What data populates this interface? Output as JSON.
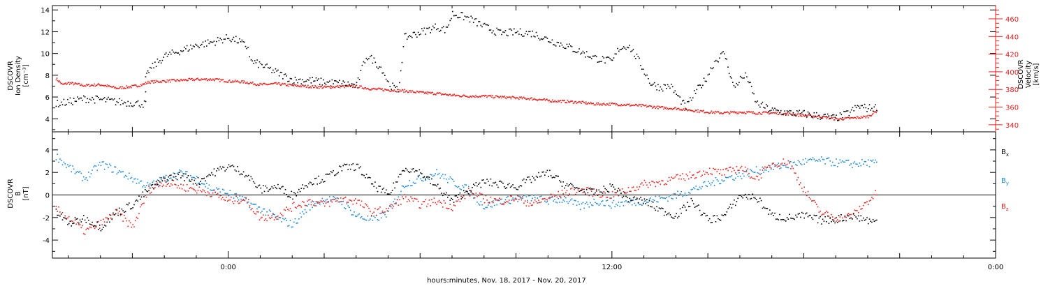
{
  "xlabel": "hours:minutes, Nov. 18, 2017 - Nov. 20, 2017",
  "x_ticks": [
    "0:00",
    "12:00",
    "0:00"
  ],
  "colors": {
    "black": "#000000",
    "red": "#e8211d",
    "blue": "#1b86d6"
  },
  "chart_data": [
    {
      "type": "scatter",
      "panel": "top",
      "ylabel": [
        "DSCOVR",
        "Ion Density",
        "[cm⁻³]"
      ],
      "ylim": [
        2.8,
        14.4
      ],
      "yticks": [
        4,
        6,
        8,
        10,
        12,
        14
      ],
      "xlim_hours": [
        -5.5,
        24.0
      ],
      "x_unit": "hours from 0:00 Nov. 19, 2017",
      "series": [
        {
          "color": "black",
          "x": [
            -5.4,
            -5.0,
            -4.5,
            -4.0,
            -3.5,
            -3.0,
            -2.6,
            -2.6,
            -2.5,
            -2.0,
            -1.5,
            -1.0,
            -0.5,
            0.0,
            0.3,
            0.6,
            0.7,
            1.0,
            1.5,
            2.0,
            2.5,
            3.0,
            3.5,
            4.0,
            4.3,
            4.5,
            4.8,
            5.0,
            5.3,
            5.5,
            6.0,
            6.5,
            6.8,
            7.0,
            7.5,
            8.0,
            8.5,
            9.0,
            9.5,
            10.0,
            10.5,
            11.0,
            11.5,
            12.0,
            12.2,
            12.5,
            12.8,
            13.0,
            13.2,
            13.5,
            13.8,
            14.0,
            14.3,
            14.6,
            14.9,
            15.2,
            15.5,
            15.8,
            16.0,
            16.2,
            16.5,
            17.0,
            17.5,
            18.0,
            18.5,
            19.0,
            19.4,
            19.7,
            20.0,
            20.3
          ],
          "y": [
            5.4,
            5.6,
            5.9,
            5.8,
            5.6,
            5.5,
            5.4,
            7.6,
            8.5,
            9.8,
            10.3,
            10.8,
            11.1,
            11.5,
            11.2,
            10.6,
            9.3,
            9.0,
            8.3,
            7.6,
            7.6,
            7.4,
            7.3,
            7.1,
            9.8,
            9.5,
            8.6,
            7.3,
            6.6,
            11.5,
            12.0,
            12.5,
            12.2,
            13.7,
            13.3,
            12.5,
            11.9,
            12.0,
            11.9,
            11.3,
            10.8,
            10.2,
            9.6,
            9.3,
            10.5,
            10.8,
            9.5,
            8.4,
            7.3,
            6.9,
            7.1,
            6.3,
            5.1,
            6.5,
            7.6,
            9.3,
            10.1,
            6.9,
            7.7,
            8.0,
            5.5,
            4.8,
            4.6,
            4.5,
            4.3,
            4.1,
            4.6,
            5.2,
            5.0,
            5.1
          ]
        },
        {
          "color": "red",
          "axis": "right",
          "ylabel": [
            "DSCOVR",
            "Velocity",
            "[km/s]"
          ],
          "ylim": [
            332,
            475
          ],
          "yticks": [
            340,
            360,
            380,
            400,
            420,
            440,
            460
          ],
          "x": [
            -5.4,
            -5.2,
            -5.0,
            -4.5,
            -4.0,
            -3.5,
            -3.0,
            -2.7,
            -2.5,
            -2.0,
            -1.5,
            -1.0,
            -0.5,
            0.0,
            0.5,
            1.0,
            1.5,
            2.0,
            2.5,
            3.0,
            3.5,
            4.0,
            4.5,
            5.0,
            5.5,
            6.0,
            6.5,
            7.0,
            7.5,
            8.0,
            8.5,
            9.0,
            9.5,
            10.0,
            10.5,
            11.0,
            11.5,
            12.0,
            12.5,
            13.0,
            13.5,
            14.0,
            14.5,
            15.0,
            15.5,
            16.0,
            16.5,
            17.0,
            17.5,
            18.0,
            18.5,
            19.0,
            19.5,
            20.0,
            20.3
          ],
          "y": [
            393,
            386,
            388,
            385,
            386,
            382,
            384,
            386,
            389,
            390,
            391,
            392,
            392,
            390,
            389,
            386,
            387,
            385,
            384,
            383,
            384,
            384,
            381,
            380,
            379,
            377,
            376,
            374,
            373,
            373,
            372,
            371,
            370,
            368,
            367,
            366,
            364,
            364,
            363,
            362,
            360,
            359,
            357,
            355,
            354,
            355,
            354,
            354,
            353,
            351,
            350,
            347,
            348,
            350,
            357
          ]
        }
      ]
    },
    {
      "type": "scatter",
      "panel": "bottom",
      "ylabel": [
        "DSCOVR",
        "B",
        "[nT]"
      ],
      "ylim": [
        -5.6,
        5.6
      ],
      "yticks": [
        -4,
        -2,
        0,
        2,
        4
      ],
      "xlim_hours": [
        -5.5,
        24.0
      ],
      "x_unit": "hours from 0:00 Nov. 19, 2017",
      "legend": [
        "B",
        "B",
        "B"
      ],
      "legend_subscripts": [
        "x",
        "y",
        "z"
      ],
      "series": [
        {
          "name": "Bx",
          "color": "black",
          "x": [
            -5.4,
            -5.0,
            -4.5,
            -4.0,
            -3.5,
            -3.0,
            -2.5,
            -2.0,
            -1.5,
            -1.0,
            -0.5,
            0.0,
            0.5,
            1.0,
            1.5,
            2.0,
            2.5,
            3.0,
            3.5,
            4.0,
            4.5,
            5.0,
            5.5,
            6.0,
            6.5,
            7.0,
            7.5,
            8.0,
            8.5,
            9.0,
            9.5,
            10.0,
            10.5,
            11.0,
            11.5,
            12.0,
            12.5,
            13.0,
            13.5,
            14.0,
            14.5,
            15.0,
            15.5,
            16.0,
            16.5,
            17.0,
            17.5,
            18.0,
            18.5,
            19.0,
            19.5,
            20.0,
            20.3
          ],
          "y": [
            -1.5,
            -2.5,
            -2.0,
            -2.8,
            -1.5,
            -0.8,
            0.5,
            1.5,
            1.8,
            1.2,
            2.0,
            2.6,
            2.0,
            0.5,
            0.8,
            0.0,
            1.2,
            1.5,
            2.4,
            2.6,
            1.0,
            0.0,
            2.5,
            2.0,
            0.8,
            -0.5,
            0.5,
            1.2,
            1.0,
            0.8,
            1.5,
            2.0,
            1.0,
            0.5,
            0.2,
            0.8,
            -0.3,
            -0.5,
            -1.3,
            -1.8,
            -0.5,
            -2.2,
            -1.8,
            0.0,
            -0.2,
            -1.8,
            -2.0,
            -1.8,
            -2.2,
            -2.1,
            -1.8,
            -2.2,
            -2.4
          ]
        },
        {
          "name": "By",
          "color": "blue",
          "x": [
            -5.4,
            -5.0,
            -4.5,
            -4.0,
            -3.5,
            -3.0,
            -2.5,
            -2.0,
            -1.5,
            -1.0,
            -0.5,
            0.0,
            0.5,
            1.0,
            1.5,
            2.0,
            2.5,
            3.0,
            3.5,
            4.0,
            4.5,
            5.0,
            5.5,
            6.0,
            6.5,
            7.0,
            7.5,
            8.0,
            8.5,
            9.0,
            9.5,
            10.0,
            10.5,
            11.0,
            11.5,
            12.0,
            12.5,
            13.0,
            13.5,
            14.0,
            14.5,
            15.0,
            15.5,
            16.0,
            16.5,
            17.0,
            17.5,
            18.0,
            18.5,
            19.0,
            19.5,
            20.0,
            20.3
          ],
          "y": [
            3.5,
            2.5,
            1.5,
            2.8,
            2.2,
            1.5,
            0.8,
            1.5,
            2.0,
            1.5,
            0.5,
            0.2,
            -0.5,
            -1.2,
            -2.0,
            -2.6,
            -1.0,
            -0.3,
            -0.5,
            -1.8,
            -2.2,
            -1.5,
            1.0,
            1.5,
            2.0,
            1.2,
            0.5,
            -1.0,
            -0.5,
            -0.3,
            -0.2,
            -0.5,
            -0.3,
            -1.0,
            -0.5,
            -0.8,
            -0.6,
            -0.5,
            -0.3,
            0.0,
            0.5,
            1.0,
            1.5,
            1.8,
            2.2,
            2.5,
            2.7,
            3.0,
            3.1,
            2.9,
            2.8,
            2.9,
            2.8
          ]
        },
        {
          "name": "Bz",
          "color": "red",
          "x": [
            -5.4,
            -5.0,
            -4.5,
            -4.0,
            -3.5,
            -3.0,
            -2.5,
            -2.0,
            -1.5,
            -1.0,
            -0.5,
            0.0,
            0.5,
            1.0,
            1.5,
            2.0,
            2.5,
            3.0,
            3.5,
            4.0,
            4.5,
            5.0,
            5.5,
            6.0,
            6.5,
            7.0,
            7.5,
            8.0,
            8.5,
            9.0,
            9.5,
            10.0,
            10.5,
            11.0,
            11.5,
            12.0,
            12.5,
            13.0,
            13.5,
            14.0,
            14.5,
            15.0,
            15.5,
            16.0,
            16.5,
            17.0,
            17.5,
            18.0,
            18.5,
            19.0,
            19.5,
            20.0,
            20.3
          ],
          "y": [
            -1.2,
            -2.0,
            -3.2,
            -2.5,
            -1.5,
            -2.8,
            0.5,
            1.2,
            0.8,
            0.5,
            0.2,
            -0.5,
            -0.3,
            -2.0,
            -1.8,
            -1.0,
            -0.5,
            -0.8,
            -0.3,
            -0.5,
            -1.5,
            -1.2,
            -0.2,
            -0.8,
            -0.5,
            -1.0,
            0.3,
            -0.3,
            -0.5,
            -0.2,
            -0.8,
            -0.2,
            0.2,
            0.5,
            0.2,
            0.0,
            0.5,
            1.0,
            1.2,
            1.5,
            1.8,
            2.2,
            2.0,
            2.5,
            1.5,
            2.8,
            3.0,
            0.5,
            -1.5,
            -2.0,
            -1.8,
            -0.5,
            0.3
          ]
        }
      ]
    }
  ]
}
